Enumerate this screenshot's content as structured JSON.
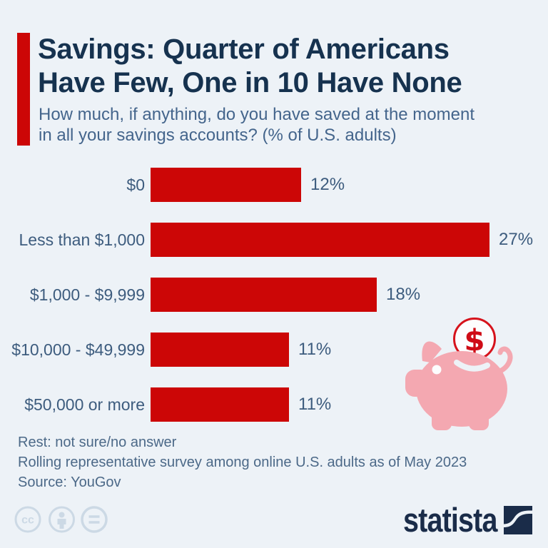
{
  "header": {
    "title_lines": [
      "Savings: Quarter of Americans",
      "Have Few, One in 10 Have None"
    ],
    "subtitle_lines": [
      "How much, if anything, do you have saved at the moment",
      "in all your savings accounts? (% of U.S. adults)"
    ]
  },
  "chart_data": {
    "type": "bar",
    "orientation": "horizontal",
    "title": "Savings: Quarter of Americans Have Few, One in 10 Have None",
    "question": "How much, if anything, do you have saved at the moment in all your savings accounts? (% of U.S. adults)",
    "categories": [
      "$0",
      "Less than $1,000",
      "$1,000 - $9,999",
      "$10,000 - $49,999",
      "$50,000 or more"
    ],
    "values": [
      12,
      27,
      18,
      11,
      11
    ],
    "value_labels": [
      "12%",
      "27%",
      "18%",
      "11%",
      "11%"
    ],
    "unit": "%",
    "xlim": [
      0,
      30
    ],
    "grid": false,
    "legend": false,
    "bar_color": "#cc0606"
  },
  "footnotes": {
    "rest": "Rest: not sure/no answer",
    "survey": "Rolling representative survey among online U.S. adults as of May 2023",
    "source": "Source: YouGov"
  },
  "branding": {
    "wordmark": "statista",
    "logo_icon": "statista-swoosh-icon"
  },
  "license": {
    "cc_text": "cc",
    "icons": [
      "cc-icon",
      "attribution-person-icon",
      "equals-icon"
    ]
  },
  "illustration": {
    "name": "piggy-bank-with-coin",
    "coin_symbol": "$"
  },
  "colors": {
    "background": "#edf2f7",
    "accent_red": "#cc0606",
    "title_navy": "#16324f",
    "text_slate": "#3d5c7e",
    "subtitle_slate": "#44658c",
    "footnote_slate": "#4c6988",
    "piggy_pink": "#f4a8b1",
    "coin_red": "#d6131c",
    "license_gray": "#ccd9e5",
    "logo_navy": "#1a2c49"
  }
}
